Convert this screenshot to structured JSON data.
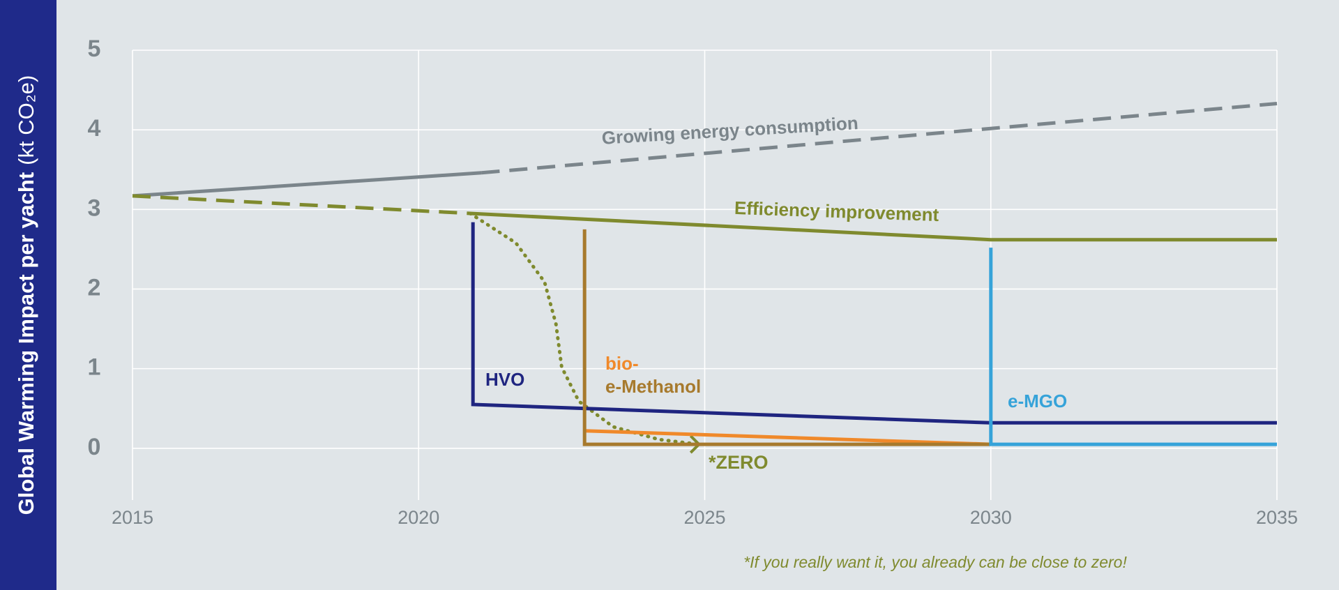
{
  "chart_data": {
    "type": "line",
    "y_label": "Global Warming Impact per yacht",
    "y_label_unit": "(kt CO₂e)",
    "xlim": [
      2015,
      2035
    ],
    "xticks": [
      2015,
      2020,
      2025,
      2030,
      2035
    ],
    "ylim": [
      -0.65,
      5
    ],
    "yticks": [
      0,
      1,
      2,
      3,
      4,
      5
    ],
    "grid": true,
    "annotation": "*ZERO",
    "footnote": "*If you really want it, you already can be close to zero!",
    "series": [
      {
        "color": "#7b858b",
        "style": "solid",
        "x": [
          2015,
          2021.1
        ],
        "values": [
          3.17,
          3.46
        ]
      },
      {
        "name": "Growing energy consumption",
        "color": "#7b858b",
        "style": "dashed",
        "x": [
          2021.1,
          2035
        ],
        "values": [
          3.46,
          4.33
        ]
      },
      {
        "color": "#7f8a2e",
        "style": "dashed",
        "x": [
          2015,
          2020.9
        ],
        "values": [
          3.17,
          2.95
        ]
      },
      {
        "name": "Efficiency improvement",
        "color": "#7f8a2e",
        "style": "solid",
        "x": [
          2020.9,
          2030,
          2035
        ],
        "values": [
          2.95,
          2.62,
          2.62
        ]
      },
      {
        "color": "#7f8a2e",
        "style": "dotted",
        "x": [
          2020.9,
          2021.7,
          2022.2,
          2022.4,
          2022.5,
          2022.8,
          2023.4,
          2024.2,
          2024.9
        ],
        "values": [
          2.95,
          2.58,
          2.09,
          1.56,
          1.02,
          0.59,
          0.27,
          0.11,
          0.05
        ]
      },
      {
        "name": "HVO",
        "color": "#1f2580",
        "style": "solid",
        "x": [
          2020.95,
          2020.95,
          2030,
          2035
        ],
        "values": [
          2.84,
          0.55,
          0.32,
          0.32
        ]
      },
      {
        "name": "bio-",
        "color": "#f0892a",
        "style": "solid",
        "x": [
          2022.9,
          2030
        ],
        "values": [
          0.22,
          0.05
        ]
      },
      {
        "name": "e-Methanol",
        "color": "#a77a2d",
        "style": "solid",
        "x": [
          2022.9,
          2022.9,
          2030
        ],
        "values": [
          2.75,
          0.05,
          0.05
        ]
      },
      {
        "name": "e-MGO",
        "color": "#36a3d9",
        "style": "solid",
        "x": [
          2030,
          2030,
          2035
        ],
        "values": [
          2.52,
          0.05,
          0.05
        ]
      }
    ]
  }
}
